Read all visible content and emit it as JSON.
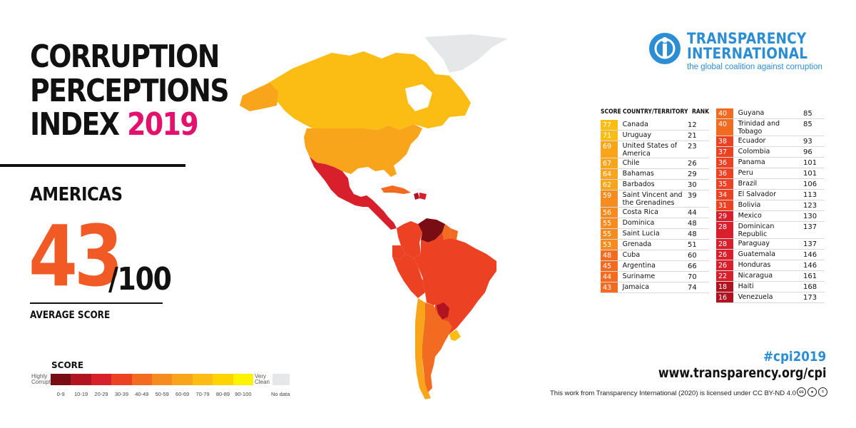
{
  "title": {
    "line1": "CORRUPTION",
    "line2": "PERCEPTIONS",
    "line3": "INDEX",
    "year": "2019"
  },
  "region": "AMERICAS",
  "average": {
    "score": "43",
    "out_of": "/100",
    "label": "AVERAGE SCORE"
  },
  "legend": {
    "title": "SCORE",
    "low_label": "Highly Corrupt",
    "high_label": "Very Clean",
    "ranges": [
      "0-9",
      "10-19",
      "20-29",
      "30-39",
      "40-49",
      "50-59",
      "60-69",
      "70-79",
      "80-89",
      "90-100"
    ],
    "colors": [
      "#7a0d14",
      "#b01421",
      "#d8202c",
      "#ed4123",
      "#f26b21",
      "#f68b1f",
      "#f8a51b",
      "#fbbd13",
      "#fdd400",
      "#fff200"
    ],
    "no_data": "No data",
    "no_data_color": "#e6e7e8"
  },
  "logo": {
    "name_line1": "TRANSPARENCY",
    "name_line2": "INTERNATIONAL",
    "tagline": "the global coalition against corruption",
    "icon": "transparency-international-logo-icon",
    "color": "#2b8dd3"
  },
  "table": {
    "headers": {
      "score": "SCORE",
      "country": "COUNTRY/TERRITORY",
      "rank": "RANK"
    },
    "left": [
      {
        "score": "77",
        "country": "Canada",
        "rank": "12",
        "color": "#fbbd13"
      },
      {
        "score": "71",
        "country": "Uruguay",
        "rank": "21",
        "color": "#fbbd13"
      },
      {
        "score": "69",
        "country": "United States of America",
        "rank": "23",
        "color": "#f8a51b"
      },
      {
        "score": "67",
        "country": "Chile",
        "rank": "26",
        "color": "#f8a51b"
      },
      {
        "score": "64",
        "country": "Bahamas",
        "rank": "29",
        "color": "#f8a51b"
      },
      {
        "score": "62",
        "country": "Barbados",
        "rank": "30",
        "color": "#f8a51b"
      },
      {
        "score": "59",
        "country": "Saint Vincent and the Grenadines",
        "rank": "39",
        "color": "#f68b1f"
      },
      {
        "score": "56",
        "country": "Costa Rica",
        "rank": "44",
        "color": "#f68b1f"
      },
      {
        "score": "55",
        "country": "Dominica",
        "rank": "48",
        "color": "#f68b1f"
      },
      {
        "score": "55",
        "country": "Saint Lucia",
        "rank": "48",
        "color": "#f68b1f"
      },
      {
        "score": "53",
        "country": "Grenada",
        "rank": "51",
        "color": "#f68b1f"
      },
      {
        "score": "48",
        "country": "Cuba",
        "rank": "60",
        "color": "#f26b21"
      },
      {
        "score": "45",
        "country": "Argentina",
        "rank": "66",
        "color": "#f26b21"
      },
      {
        "score": "44",
        "country": "Suriname",
        "rank": "70",
        "color": "#f26b21"
      },
      {
        "score": "43",
        "country": "Jamaica",
        "rank": "74",
        "color": "#f26b21"
      }
    ],
    "right": [
      {
        "score": "40",
        "country": "Guyana",
        "rank": "85",
        "color": "#f26b21"
      },
      {
        "score": "40",
        "country": "Trinidad and Tobago",
        "rank": "85",
        "color": "#f26b21"
      },
      {
        "score": "38",
        "country": "Ecuador",
        "rank": "93",
        "color": "#ed4123"
      },
      {
        "score": "37",
        "country": "Colombia",
        "rank": "96",
        "color": "#ed4123"
      },
      {
        "score": "36",
        "country": "Panama",
        "rank": "101",
        "color": "#ed4123"
      },
      {
        "score": "36",
        "country": "Peru",
        "rank": "101",
        "color": "#ed4123"
      },
      {
        "score": "35",
        "country": "Brazil",
        "rank": "106",
        "color": "#ed4123"
      },
      {
        "score": "34",
        "country": "El Salvador",
        "rank": "113",
        "color": "#ed4123"
      },
      {
        "score": "31",
        "country": "Bolivia",
        "rank": "123",
        "color": "#ed4123"
      },
      {
        "score": "29",
        "country": "Mexico",
        "rank": "130",
        "color": "#d8202c"
      },
      {
        "score": "28",
        "country": "Dominican Republic",
        "rank": "137",
        "color": "#d8202c"
      },
      {
        "score": "28",
        "country": "Paraguay",
        "rank": "137",
        "color": "#d8202c"
      },
      {
        "score": "26",
        "country": "Guatemala",
        "rank": "146",
        "color": "#d8202c"
      },
      {
        "score": "26",
        "country": "Honduras",
        "rank": "146",
        "color": "#d8202c"
      },
      {
        "score": "22",
        "country": "Nicaragua",
        "rank": "161",
        "color": "#d8202c"
      },
      {
        "score": "18",
        "country": "Haiti",
        "rank": "168",
        "color": "#b01421"
      },
      {
        "score": "16",
        "country": "Venezuela",
        "rank": "173",
        "color": "#b01421"
      }
    ]
  },
  "footer": {
    "hashtag": "#cpi2019",
    "website": "www.transparency.org/cpi",
    "license": "This work from Transparency International (2020) is licensed under CC BY-ND 4.0",
    "cc_icons": [
      "creative-commons-icon",
      "attribution-icon",
      "no-derivatives-icon"
    ]
  }
}
